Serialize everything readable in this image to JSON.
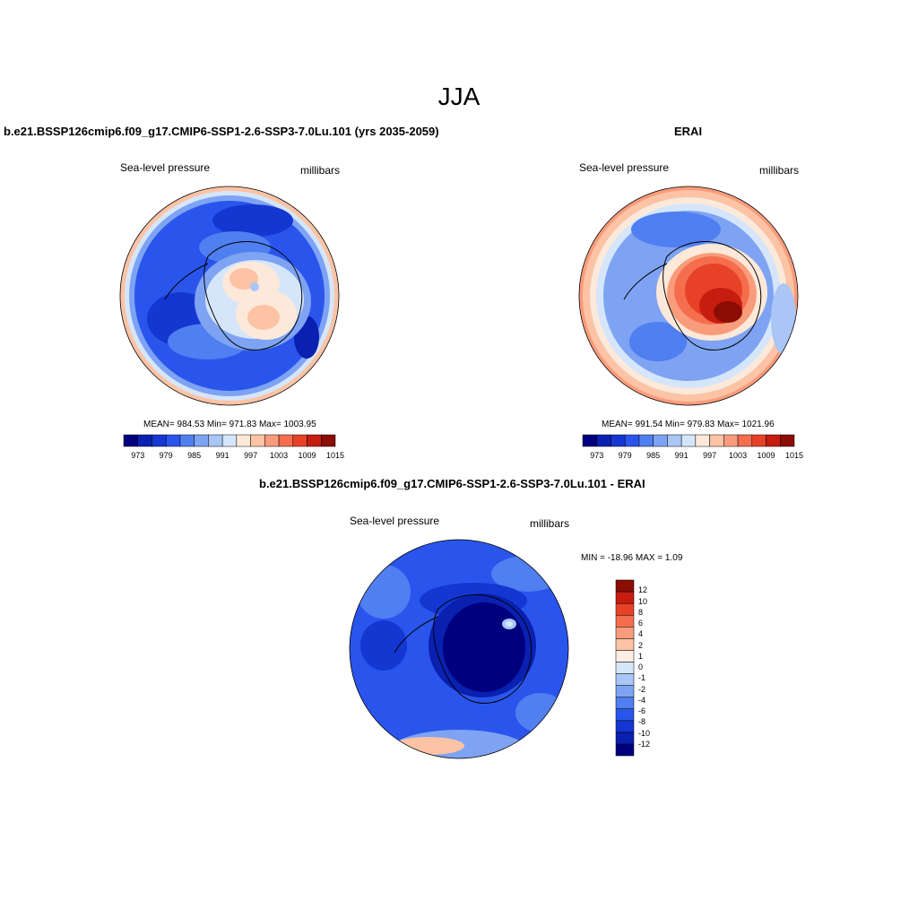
{
  "figure": {
    "title": "JJA"
  },
  "panels": [
    {
      "title": "b.e21.BSSP126cmip6.f09_g17.CMIP6-SSP1-2.6-SSP3-7.0Lu.101 (yrs 2035-2059)",
      "variable": "Sea-level pressure",
      "units": "millibars",
      "stats": "MEAN= 984.53  Min= 971.83  Max= 1003.95"
    },
    {
      "title": "ERAI",
      "variable": "Sea-level pressure",
      "units": "millibars",
      "stats": "MEAN= 991.54  Min= 979.83  Max= 1021.96"
    },
    {
      "title": "b.e21.BSSP126cmip6.f09_g17.CMIP6-SSP1-2.6-SSP3-7.0Lu.101 - ERAI",
      "variable": "Sea-level pressure",
      "units": "millibars",
      "stats": "MIN = -18.96 MAX =   1.09"
    }
  ],
  "colorbar_abs": {
    "colors": [
      "#00007f",
      "#0a20b0",
      "#1437d2",
      "#2a55ec",
      "#4f7ff0",
      "#7ea3f3",
      "#a9c6f7",
      "#d5e6fb",
      "#fde9d9",
      "#fcc3a5",
      "#f99c7c",
      "#f46e4e",
      "#e74227",
      "#c71c10",
      "#8b0d03"
    ],
    "ticks": [
      "973",
      "979",
      "985",
      "991",
      "997",
      "1003",
      "1009",
      "1015"
    ]
  },
  "colorbar_diff": {
    "colors": [
      "#00007f",
      "#0a20b0",
      "#1437d2",
      "#2a55ec",
      "#4f7ff0",
      "#7ea3f3",
      "#a9c6f7",
      "#d5e6fb",
      "#fdeee2",
      "#fcc3a5",
      "#f99c7c",
      "#f46e4e",
      "#e74227",
      "#c71c10",
      "#8b0d03"
    ],
    "ticks": [
      "-12",
      "-10",
      "-8",
      "-6",
      "-4",
      "-2",
      "-1",
      "0",
      "1",
      "2",
      "4",
      "6",
      "8",
      "10",
      "12"
    ]
  }
}
